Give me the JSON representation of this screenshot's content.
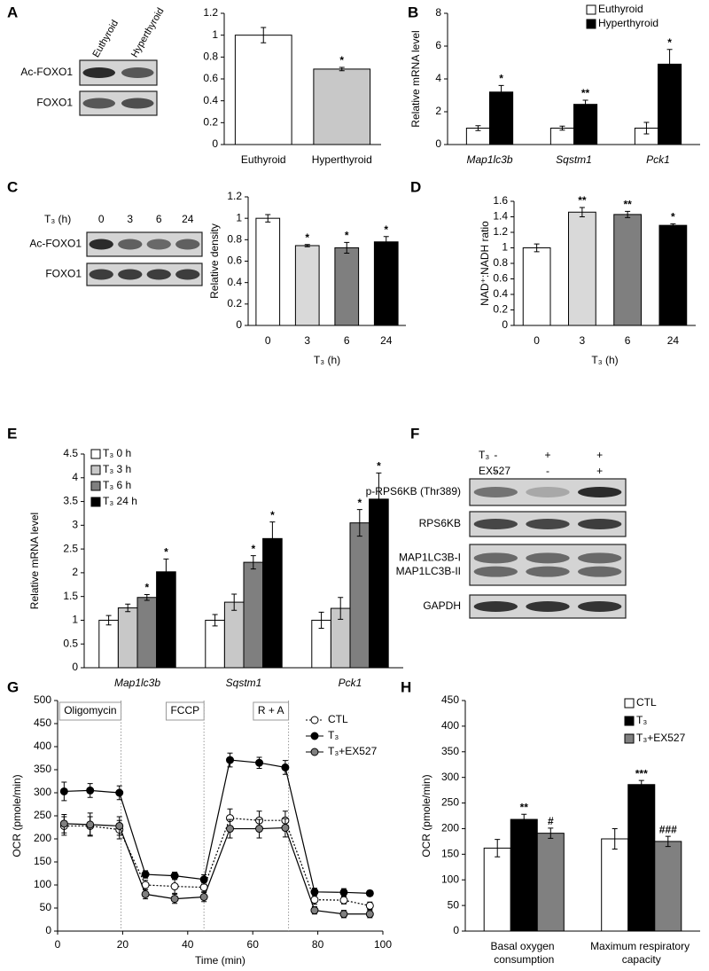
{
  "panels": [
    "A",
    "B",
    "C",
    "D",
    "E",
    "F",
    "G",
    "H"
  ],
  "blots": [
    {
      "lanes": [
        "Euthyroid",
        "Hyperthyroid"
      ],
      "rows": [
        {
          "labels": [
            "Ac-FOXO1"
          ]
        },
        {
          "labels": [
            "FOXO1"
          ]
        }
      ]
    },
    {
      "lane_header": "T₃ (h)",
      "lanes": [
        "0",
        "3",
        "6",
        "24"
      ],
      "rows": [
        {
          "labels": [
            "Ac-FOXO1"
          ]
        },
        {
          "labels": [
            "FOXO1"
          ]
        }
      ]
    },
    {
      "treatments": [
        {
          "name": "T₃",
          "marks": [
            "-",
            "+",
            "+"
          ]
        },
        {
          "name": "EX527",
          "marks": [
            "-",
            "-",
            "+"
          ]
        }
      ],
      "rows": [
        {
          "labels": [
            "p-RPS6KB (Thr389)"
          ]
        },
        {
          "labels": [
            "RPS6KB"
          ]
        },
        {
          "labels": [
            "MAP1LC3B-I",
            "MAP1LC3B-II"
          ]
        },
        {
          "labels": [
            "GAPDH"
          ]
        }
      ]
    }
  ],
  "chart_data": [
    {
      "type": "bar",
      "categories": [
        "Euthyroid",
        "Hyperthyroid"
      ],
      "values": [
        1,
        0.69
      ],
      "errors": [
        0.07,
        0.015
      ],
      "colors": [
        "#ffffff",
        "#c8c8c8"
      ],
      "annotations": [
        null,
        "*"
      ],
      "ylim": [
        0,
        1.2
      ],
      "yticks": [
        0,
        0.2,
        0.4,
        0.6,
        0.8,
        1,
        1.2
      ]
    },
    {
      "type": "bar",
      "ylabel": "Relative mRNA level",
      "categories": [
        "Map1lc3b",
        "Sqstm1",
        "Pck1"
      ],
      "italic_categories": true,
      "series": [
        {
          "name": "Euthyroid",
          "color": "#ffffff",
          "values": [
            1,
            1,
            1
          ],
          "errors": [
            0.15,
            0.12,
            0.35
          ]
        },
        {
          "name": "Hyperthyroid",
          "color": "#000000",
          "values": [
            3.2,
            2.45,
            4.9
          ],
          "errors": [
            0.4,
            0.25,
            0.9
          ],
          "annotations": [
            "*",
            "**",
            "*"
          ]
        }
      ],
      "ylim": [
        0,
        8
      ],
      "yticks": [
        0,
        2,
        4,
        6,
        8
      ],
      "legend": "upper right"
    },
    {
      "type": "bar",
      "ylabel": "Relative density",
      "xlabel": "T₃ (h)",
      "categories": [
        "0",
        "3",
        "6",
        "24"
      ],
      "values": [
        1,
        0.745,
        0.725,
        0.78
      ],
      "errors": [
        0.035,
        0.01,
        0.05,
        0.05
      ],
      "colors": [
        "#ffffff",
        "#d9d9d9",
        "#7f7f7f",
        "#000000"
      ],
      "annotations": [
        null,
        "*",
        "*",
        "*"
      ],
      "ylim": [
        0,
        1.2
      ],
      "yticks": [
        0,
        0.2,
        0.4,
        0.6,
        0.8,
        1,
        1.2
      ]
    },
    {
      "type": "bar",
      "ylabel": "NAD⁺:NADH ratio",
      "xlabel": "T₃ (h)",
      "categories": [
        "0",
        "3",
        "6",
        "24"
      ],
      "values": [
        1,
        1.46,
        1.43,
        1.29
      ],
      "errors": [
        0.05,
        0.06,
        0.04,
        0.02
      ],
      "colors": [
        "#ffffff",
        "#d9d9d9",
        "#7f7f7f",
        "#000000"
      ],
      "annotations": [
        null,
        "**",
        "**",
        "*"
      ],
      "ylim": [
        0,
        1.6
      ],
      "yticks": [
        0,
        0.2,
        0.4,
        0.6,
        0.8,
        1,
        1.2,
        1.4,
        1.6
      ]
    },
    {
      "type": "bar",
      "ylabel": "Relative mRNA level",
      "categories": [
        "Map1lc3b",
        "Sqstm1",
        "Pck1"
      ],
      "italic_categories": true,
      "series": [
        {
          "name": "T₃ 0 h",
          "color": "#ffffff",
          "values": [
            1,
            1,
            1
          ],
          "errors": [
            0.1,
            0.12,
            0.17
          ]
        },
        {
          "name": "T₃ 3 h",
          "color": "#c8c8c8",
          "values": [
            1.26,
            1.38,
            1.25
          ],
          "errors": [
            0.08,
            0.17,
            0.23
          ]
        },
        {
          "name": "T₃ 6 h",
          "color": "#7f7f7f",
          "values": [
            1.48,
            2.22,
            3.05
          ],
          "errors": [
            0.06,
            0.14,
            0.28
          ],
          "annotations": [
            "*",
            "*",
            "*"
          ]
        },
        {
          "name": "T₃ 24 h",
          "color": "#000000",
          "values": [
            2.02,
            2.72,
            3.55
          ],
          "errors": [
            0.27,
            0.35,
            0.55
          ],
          "annotations": [
            "*",
            "*",
            "*"
          ]
        }
      ],
      "ylim": [
        0,
        4.5
      ],
      "yticks": [
        0,
        0.5,
        1,
        1.5,
        2,
        2.5,
        3,
        3.5,
        4,
        4.5
      ],
      "legend": "upper left"
    },
    {
      "type": "line",
      "xlabel": "Time (min)",
      "ylabel": "OCR (pmole/min)",
      "x": [
        2,
        10,
        19,
        27,
        36,
        45,
        53,
        62,
        70,
        79,
        88,
        96
      ],
      "series": [
        {
          "name": "CTL",
          "color": "#ffffff",
          "linestyle": "dotted",
          "values": [
            228,
            228,
            220,
            100,
            97,
            95,
            245,
            240,
            240,
            68,
            67,
            55
          ],
          "errors": [
            20,
            20,
            20,
            10,
            15,
            10,
            20,
            20,
            20,
            10,
            8,
            8
          ]
        },
        {
          "name": "T₃",
          "color": "#000000",
          "linestyle": "solid",
          "values": [
            303,
            305,
            300,
            123,
            120,
            112,
            371,
            365,
            355,
            85,
            84,
            82
          ],
          "errors": [
            20,
            15,
            15,
            8,
            8,
            10,
            15,
            12,
            15,
            8,
            8,
            6
          ]
        },
        {
          "name": "T₃+EX527",
          "color": "#808080",
          "linestyle": "solid",
          "values": [
            233,
            231,
            228,
            80,
            70,
            74,
            222,
            222,
            224,
            45,
            37,
            37
          ],
          "errors": [
            20,
            25,
            20,
            10,
            10,
            10,
            20,
            20,
            20,
            8,
            8,
            8
          ]
        }
      ],
      "injections": [
        {
          "label": "Oligomycin",
          "x": 19.5
        },
        {
          "label": "FCCP",
          "x": 45
        },
        {
          "label": "R + A",
          "x": 71
        }
      ],
      "xlim": [
        0,
        100
      ],
      "xticks": [
        0,
        20,
        40,
        60,
        80,
        100
      ],
      "ylim": [
        0,
        500
      ],
      "yticks": [
        0,
        50,
        100,
        150,
        200,
        250,
        300,
        350,
        400,
        450,
        500
      ],
      "legend": "upper right"
    },
    {
      "type": "bar",
      "ylabel": "OCR (pmole/min)",
      "categories": [
        "Basal oxygen consumption",
        "Maximum respiratory capacity"
      ],
      "series": [
        {
          "name": "CTL",
          "color": "#ffffff",
          "values": [
            162,
            180
          ],
          "errors": [
            17,
            20
          ]
        },
        {
          "name": "T₃",
          "color": "#000000",
          "values": [
            218,
            286
          ],
          "errors": [
            10,
            8
          ],
          "annotations": [
            "**",
            "***"
          ]
        },
        {
          "name": "T₃+EX527",
          "color": "#808080",
          "values": [
            191,
            175
          ],
          "errors": [
            10,
            10
          ],
          "annotations": [
            "#",
            "###"
          ]
        }
      ],
      "ylim": [
        0,
        450
      ],
      "yticks": [
        0,
        50,
        100,
        150,
        200,
        250,
        300,
        350,
        400,
        450
      ],
      "legend": "upper right"
    }
  ]
}
